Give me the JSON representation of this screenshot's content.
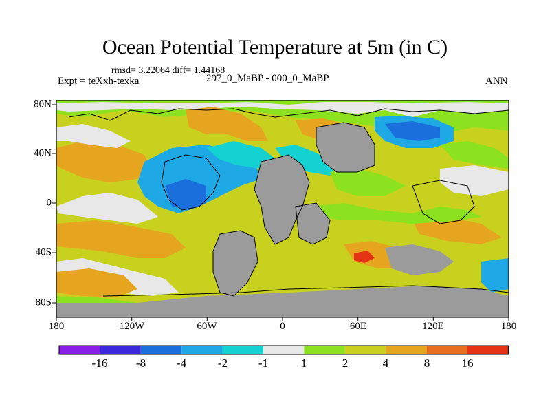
{
  "title": "Ocean Potential Temperature at 5m (in C)",
  "stats": "rmsd= 3.22064 diff= 1.44168",
  "expt_label": "Expt = teXxh-texka",
  "experiment_label": "297_0_MaBP - 000_0_MaBP",
  "season": "ANN",
  "x_axis_labels": [
    "180",
    "120W",
    "60W",
    "0",
    "60E",
    "120E",
    "180"
  ],
  "y_axis_labels": [
    "80N",
    "40N",
    "0",
    "40S",
    "80S"
  ],
  "colorbar": {
    "labels": [
      "-16",
      "-8",
      "-4",
      "-2",
      "-1",
      "1",
      "2",
      "4",
      "8",
      "16"
    ],
    "colors": [
      "#8a1ee6",
      "#3c28dc",
      "#1a6fdc",
      "#1ea9e6",
      "#14d2d2",
      "#e8e8e8",
      "#8ce21e",
      "#c8d21e",
      "#e6a51e",
      "#e66e1e",
      "#e63214"
    ]
  },
  "colors": {
    "land": "#9b9b9b",
    "neutral": "#e8e8e8"
  }
}
